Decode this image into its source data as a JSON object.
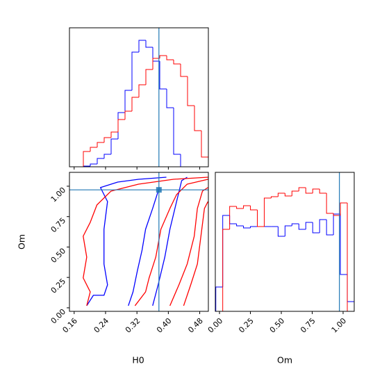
{
  "chart_data": [
    {
      "type": "histogram",
      "bins": [
        0.148,
        0.1657,
        0.1834,
        0.2011,
        0.2188,
        0.2365,
        0.2542,
        0.2719,
        0.2896,
        0.3073,
        0.325,
        0.3427,
        0.3604,
        0.3781,
        0.3958,
        0.4135,
        0.4312,
        0.4489,
        0.4666,
        0.4843,
        0.502
      ],
      "series": [
        {
          "color": "#0000ff",
          "values": [
            0,
            0,
            1,
            4,
            12,
            18,
            40,
            78,
            110,
            165,
            182,
            172,
            152,
            112,
            85,
            18,
            0,
            0,
            0,
            0
          ]
        },
        {
          "color": "#ff0000",
          "values": [
            0,
            0,
            22,
            28,
            35,
            42,
            50,
            68,
            80,
            100,
            118,
            140,
            156,
            160,
            154,
            148,
            130,
            88,
            52,
            14
          ]
        }
      ],
      "xlim": [
        0.148,
        0.502
      ],
      "ylim": [
        0,
        200
      ],
      "xticks": [
        0.16,
        0.24,
        0.32,
        0.4,
        0.48
      ],
      "show_xtick_labels": false,
      "truth_x": 0.376,
      "truth_color": "#1f77b4"
    },
    {
      "type": "contour",
      "xlabel": "H0",
      "ylabel": "Om",
      "xlim": [
        0.148,
        0.502
      ],
      "ylim": [
        -0.029,
        1.114
      ],
      "xticks": [
        0.16,
        0.24,
        0.32,
        {
          "value": 0.4,
          "label": "0.40"
        },
        0.48
      ],
      "yticks": [
        {
          "value": 0,
          "label": "0.00"
        },
        0.25,
        {
          "value": 0.5,
          "label": "0.50"
        },
        0.75,
        {
          "value": 1,
          "label": "1.00"
        }
      ],
      "contours": [
        {
          "color": "#0000ff",
          "x": [
            0.192,
            0.209,
            0.236,
            0.245,
            0.236,
            0.236,
            0.245,
            0.227,
            0.271,
            0.324,
            0.395
          ],
          "y": [
            0.017,
            0.103,
            0.103,
            0.189,
            0.36,
            0.646,
            0.874,
            0.989,
            1.034,
            1.057,
            1.074
          ]
        },
        {
          "color": "#0000ff",
          "x": [
            0.298,
            0.31,
            0.321,
            0.333,
            0.342,
            0.36,
            0.377
          ],
          "y": [
            0.017,
            0.131,
            0.303,
            0.474,
            0.646,
            0.817,
            0.989
          ]
        },
        {
          "color": "#0000ff",
          "x": [
            0.36,
            0.374,
            0.391,
            0.404,
            0.421,
            0.434,
            0.448
          ],
          "y": [
            0.017,
            0.189,
            0.417,
            0.646,
            0.874,
            1.046,
            1.074
          ]
        },
        {
          "color": "#ff0000",
          "x": [
            0.192,
            0.201,
            0.183,
            0.192,
            0.183,
            0.201,
            0.218,
            0.254,
            0.324,
            0.413,
            0.501
          ],
          "y": [
            0.017,
            0.131,
            0.246,
            0.417,
            0.589,
            0.703,
            0.846,
            0.96,
            1.017,
            1.057,
            1.074
          ]
        },
        {
          "color": "#ff0000",
          "x": [
            0.315,
            0.342,
            0.351,
            0.368,
            0.381,
            0.404,
            0.421,
            0.448,
            0.501
          ],
          "y": [
            0.017,
            0.131,
            0.246,
            0.417,
            0.646,
            0.817,
            0.931,
            1.017,
            1.057
          ]
        },
        {
          "color": "#ff0000",
          "x": [
            0.404,
            0.427,
            0.448,
            0.466,
            0.474,
            0.487,
            0.501
          ],
          "y": [
            0.017,
            0.189,
            0.36,
            0.589,
            0.817,
            0.96,
            0.989
          ]
        },
        {
          "color": "#ff0000",
          "x": [
            0.439,
            0.457,
            0.474,
            0.483,
            0.492,
            0.501
          ],
          "y": [
            0.017,
            0.189,
            0.36,
            0.589,
            0.817,
            0.874
          ]
        }
      ],
      "truth_x": 0.376,
      "truth_y": 0.97,
      "truth_color": "#1f77b4"
    },
    {
      "type": "histogram",
      "xlabel": "Om",
      "bins": [
        -0.03,
        0.026,
        0.082,
        0.138,
        0.194,
        0.25,
        0.306,
        0.362,
        0.418,
        0.474,
        0.53,
        0.586,
        0.642,
        0.698,
        0.754,
        0.81,
        0.866,
        0.922,
        0.978,
        1.034,
        1.09
      ],
      "series": [
        {
          "color": "#0000ff",
          "values": [
            35,
            138,
            126,
            123,
            120,
            122,
            122,
            122,
            122,
            108,
            123,
            126,
            118,
            128,
            113,
            132,
            110,
            140,
            53,
            14
          ]
        },
        {
          "color": "#ff0000",
          "values": [
            0,
            118,
            151,
            148,
            152,
            146,
            122,
            163,
            165,
            170,
            166,
            173,
            178,
            170,
            176,
            170,
            141,
            138,
            156,
            0
          ]
        }
      ],
      "xlim": [
        -0.034,
        1.09
      ],
      "ylim": [
        0,
        200
      ],
      "xticks": [
        {
          "value": 0,
          "label": "0.00"
        },
        0.25,
        {
          "value": 0.5,
          "label": "0.50"
        },
        0.75,
        {
          "value": 1,
          "label": "1.00"
        }
      ],
      "show_xtick_labels": true,
      "truth_x": 0.97,
      "truth_color": "#1f77b4"
    }
  ]
}
